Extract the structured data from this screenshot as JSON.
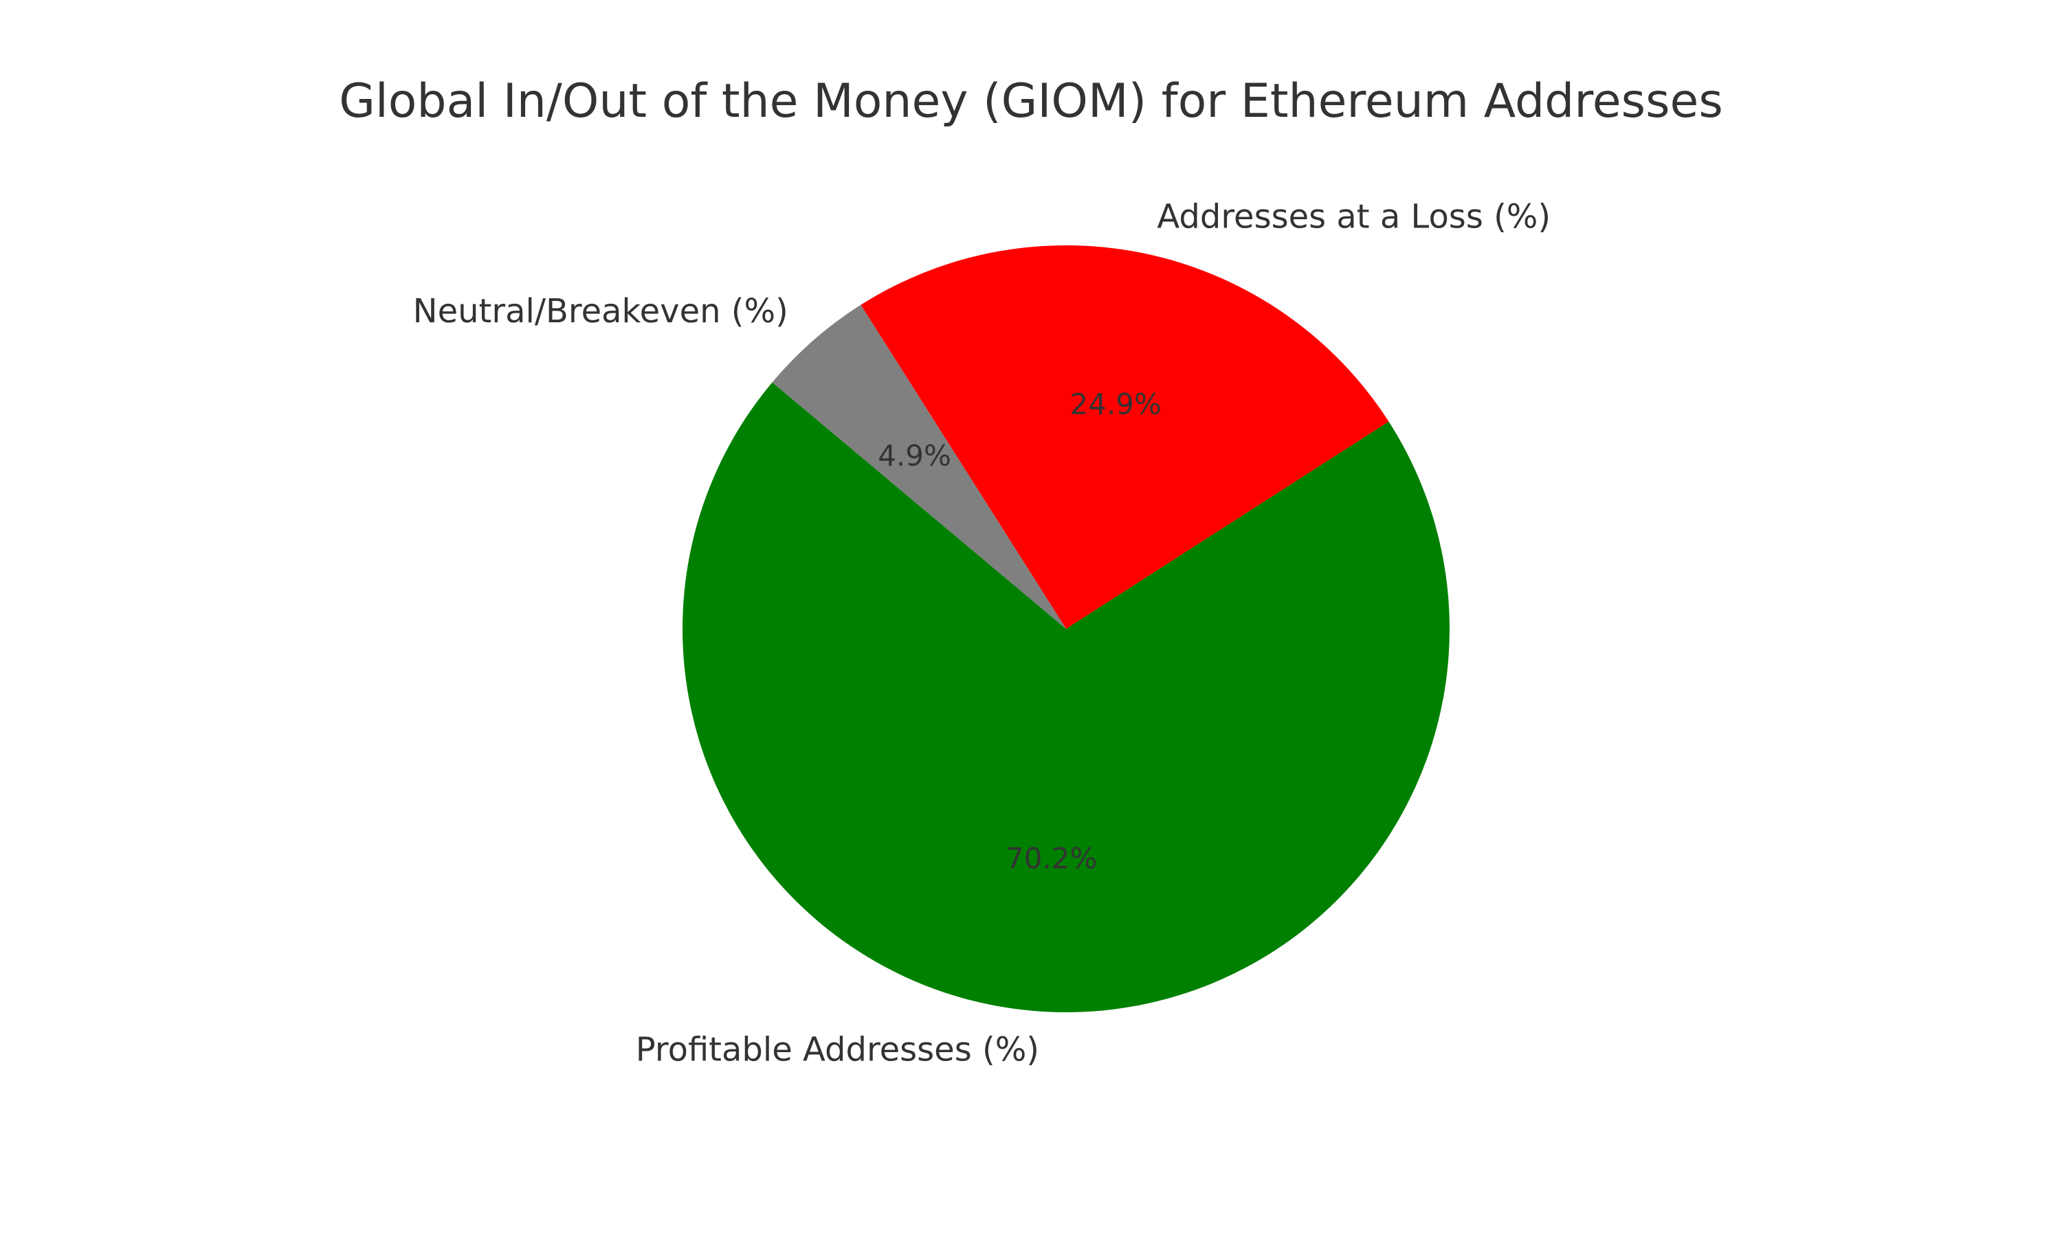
{
  "chart_data": {
    "type": "pie",
    "title": "Global In/Out of the Money (GIOM) for Ethereum Addresses",
    "start_angle_deg": 140,
    "direction": "counterclockwise",
    "slices": [
      {
        "label": "Profitable Addresses (%)",
        "value": 70.2,
        "pct_label": "70.2%",
        "color": "#008000"
      },
      {
        "label": "Addresses at a Loss (%)",
        "value": 24.9,
        "pct_label": "24.9%",
        "color": "#ff0000"
      },
      {
        "label": "Neutral/Breakeven (%)",
        "value": 4.9,
        "pct_label": "4.9%",
        "color": "#808080"
      }
    ]
  }
}
